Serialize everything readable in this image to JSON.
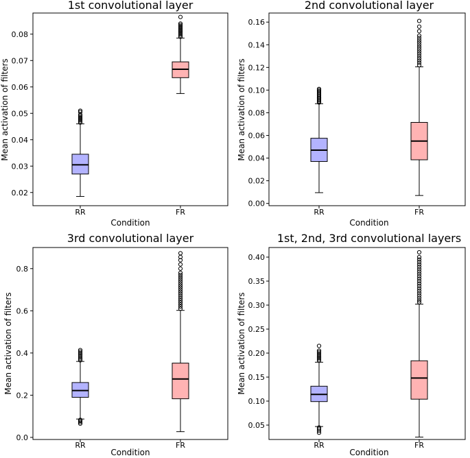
{
  "chart_data": [
    {
      "type": "box",
      "title": "1st convolutional layer",
      "xlabel": "Condition",
      "ylabel": "Mean activation of filters",
      "categories": [
        "RR",
        "FR"
      ],
      "ylim": [
        0.015,
        0.088
      ],
      "yticks": [
        "0.02",
        "0.03",
        "0.04",
        "0.05",
        "0.06",
        "0.07",
        "0.08"
      ],
      "boxes": [
        {
          "name": "RR",
          "color": "#b3b3ff",
          "whisker_low": 0.0185,
          "q1": 0.027,
          "median": 0.0305,
          "q3": 0.0345,
          "whisker_high": 0.046,
          "outliers": [
            0.0465,
            0.047,
            0.0475,
            0.048,
            0.0485,
            0.049,
            0.0495,
            0.0505,
            0.051
          ]
        },
        {
          "name": "FR",
          "color": "#ffb3b3",
          "whisker_low": 0.0575,
          "q1": 0.0635,
          "median": 0.0667,
          "q3": 0.0695,
          "whisker_high": 0.0785,
          "outliers": [
            0.079,
            0.0795,
            0.08,
            0.0805,
            0.081,
            0.0815,
            0.082,
            0.0825,
            0.083,
            0.0835,
            0.084,
            0.0865
          ]
        }
      ]
    },
    {
      "type": "box",
      "title": "2nd convolutional layer",
      "xlabel": "Condition",
      "ylabel": "Mean activation of filters",
      "categories": [
        "RR",
        "FR"
      ],
      "ylim": [
        -0.002,
        0.168
      ],
      "yticks": [
        "0.00",
        "0.02",
        "0.04",
        "0.06",
        "0.08",
        "0.10",
        "0.12",
        "0.14",
        "0.16"
      ],
      "boxes": [
        {
          "name": "RR",
          "color": "#b3b3ff",
          "whisker_low": 0.0095,
          "q1": 0.037,
          "median": 0.047,
          "q3": 0.0575,
          "whisker_high": 0.088,
          "outliers": [
            0.089,
            0.09,
            0.091,
            0.092,
            0.093,
            0.094,
            0.095,
            0.096,
            0.097,
            0.098,
            0.099,
            0.1,
            0.101
          ]
        },
        {
          "name": "FR",
          "color": "#ffb3b3",
          "whisker_low": 0.007,
          "q1": 0.0385,
          "median": 0.055,
          "q3": 0.0715,
          "whisker_high": 0.1205,
          "outliers": [
            0.122,
            0.124,
            0.126,
            0.128,
            0.13,
            0.132,
            0.134,
            0.136,
            0.138,
            0.14,
            0.142,
            0.144,
            0.146,
            0.148,
            0.152,
            0.156,
            0.161
          ]
        }
      ]
    },
    {
      "type": "box",
      "title": "3rd convolutional layer",
      "xlabel": "Condition",
      "ylabel": "Mean activation of filters",
      "categories": [
        "RR",
        "FR"
      ],
      "ylim": [
        -0.01,
        0.9
      ],
      "yticks": [
        "0.0",
        "0.2",
        "0.4",
        "0.6",
        "0.8"
      ],
      "boxes": [
        {
          "name": "RR",
          "color": "#b3b3ff",
          "whisker_low": 0.087,
          "q1": 0.19,
          "median": 0.222,
          "q3": 0.26,
          "whisker_high": 0.36,
          "outliers": [
            0.065,
            0.072,
            0.078,
            0.083,
            0.365,
            0.372,
            0.379,
            0.386,
            0.393,
            0.4,
            0.407,
            0.414
          ]
        },
        {
          "name": "FR",
          "color": "#ffb3b3",
          "whisker_low": 0.027,
          "q1": 0.183,
          "median": 0.277,
          "q3": 0.352,
          "whisker_high": 0.602,
          "outliers": [
            0.61,
            0.62,
            0.63,
            0.64,
            0.65,
            0.66,
            0.67,
            0.68,
            0.69,
            0.7,
            0.71,
            0.72,
            0.73,
            0.74,
            0.75,
            0.76,
            0.77,
            0.78,
            0.8,
            0.82,
            0.84,
            0.855,
            0.873
          ]
        }
      ]
    },
    {
      "type": "box",
      "title": "1st, 2nd, 3rd convolutional layers",
      "xlabel": "Condition",
      "ylabel": "Mean activation of filters",
      "categories": [
        "RR",
        "FR"
      ],
      "ylim": [
        0.02,
        0.42
      ],
      "yticks": [
        "0.05",
        "0.10",
        "0.15",
        "0.20",
        "0.25",
        "0.30",
        "0.35",
        "0.40"
      ],
      "boxes": [
        {
          "name": "RR",
          "color": "#b3b3ff",
          "whisker_low": 0.047,
          "q1": 0.099,
          "median": 0.114,
          "q3": 0.131,
          "whisker_high": 0.181,
          "outliers": [
            0.034,
            0.038,
            0.042,
            0.045,
            0.184,
            0.187,
            0.19,
            0.193,
            0.196,
            0.199,
            0.202,
            0.205,
            0.215
          ]
        },
        {
          "name": "FR",
          "color": "#ffb3b3",
          "whisker_low": 0.025,
          "q1": 0.104,
          "median": 0.148,
          "q3": 0.184,
          "whisker_high": 0.302,
          "outliers": [
            0.306,
            0.31,
            0.315,
            0.32,
            0.325,
            0.33,
            0.335,
            0.34,
            0.345,
            0.35,
            0.355,
            0.36,
            0.365,
            0.37,
            0.375,
            0.38,
            0.385,
            0.39,
            0.395,
            0.4,
            0.41
          ]
        }
      ]
    }
  ]
}
